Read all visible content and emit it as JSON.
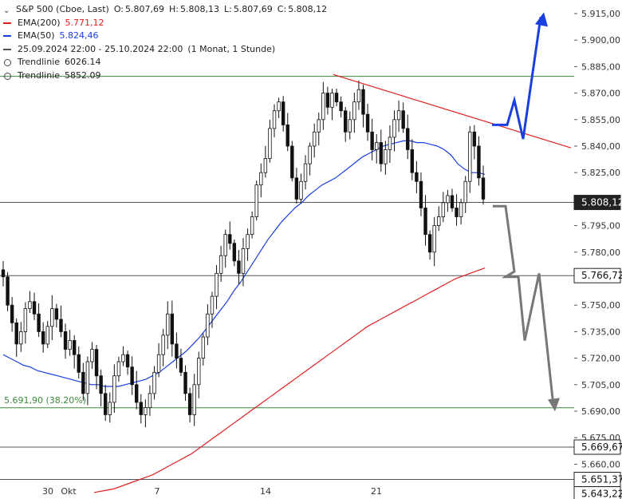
{
  "legend": {
    "instrument": "S&P 500 (Cboe, Last)",
    "ohlc": {
      "o_label": "O:",
      "o": "5.807,69",
      "h_label": "H:",
      "h": "5.808,13",
      "l_label": "L:",
      "l": "5.807,69",
      "c_label": "C:",
      "c": "5.808,12"
    },
    "ema200": {
      "name": "EMA(200)",
      "value": "5.771,12"
    },
    "ema50": {
      "name": "EMA(50)",
      "value": "5.824,46"
    },
    "range": {
      "dates": "25.09.2024 22:00 - 25.10.2024 22:00",
      "interval": "(1 Monat, 1 Stunde)"
    },
    "trend1": {
      "name": "Trendlinie",
      "value": "6026.14"
    },
    "trend2": {
      "name": "Trendlinie",
      "value": "5852.09"
    }
  },
  "colors": {
    "ema200": "#e02020",
    "ema50": "#1a3fe0",
    "price_bg": "#222222",
    "candle": "#111111",
    "hline": "#3a8a3a",
    "resistance": "#e02020",
    "bull_arrow": "#1a3fe0",
    "bear_arrow": "#777777"
  },
  "chart_data": {
    "type": "candlestick",
    "y_axis": {
      "ticks": [
        "5.915,00",
        "5.900,00",
        "5.885,00",
        "5.870,00",
        "5.855,00",
        "5.840,00",
        "5.825,00",
        "5.810,00",
        "5.795,00",
        "5.780,00",
        "5.765,00",
        "5.750,00",
        "5.735,00",
        "5.720,00",
        "5.705,00",
        "5.690,00",
        "5.675,00",
        "5.660,00",
        "5.645,00"
      ],
      "ylim": [
        5642,
        5920
      ]
    },
    "x_axis": {
      "ticks": [
        "30",
        "Okt",
        "7",
        "14",
        "21"
      ]
    },
    "price_labels": [
      {
        "text": "5.808,12",
        "value": 5808.12,
        "style": "dark"
      },
      {
        "text": "5.766,72",
        "value": 5766.72,
        "style": "box"
      },
      {
        "text": "5.669,67",
        "value": 5669.67,
        "style": "box"
      },
      {
        "text": "5.651,37",
        "value": 5651.37,
        "style": "box"
      },
      {
        "text": "5.643,22",
        "value": 5643.22,
        "style": "box"
      }
    ],
    "horizontal_lines": [
      {
        "value": 5879.5,
        "color": "#3a8a3a"
      },
      {
        "value": 5808.12,
        "color": "#555555"
      },
      {
        "value": 5766.72,
        "color": "#555555"
      },
      {
        "value": 5691.9,
        "color": "#3a8a3a",
        "label": "5.691,90 (38.20%)"
      },
      {
        "value": 5669.67,
        "color": "#555555"
      },
      {
        "value": 5651.37,
        "color": "#555555"
      }
    ],
    "fib_label": "5.691,90 (38.20%)",
    "close": [
      5766,
      5750,
      5740,
      5728,
      5735,
      5748,
      5752,
      5745,
      5735,
      5728,
      5738,
      5748,
      5742,
      5735,
      5725,
      5730,
      5722,
      5712,
      5700,
      5718,
      5725,
      5710,
      5700,
      5688,
      5695,
      5710,
      5718,
      5722,
      5715,
      5705,
      5695,
      5688,
      5692,
      5700,
      5712,
      5722,
      5733,
      5745,
      5728,
      5720,
      5712,
      5700,
      5688,
      5705,
      5720,
      5732,
      5745,
      5755,
      5768,
      5778,
      5790,
      5785,
      5775,
      5768,
      5782,
      5790,
      5800,
      5818,
      5825,
      5833,
      5850,
      5860,
      5865,
      5852,
      5840,
      5822,
      5810,
      5820,
      5830,
      5840,
      5848,
      5855,
      5870,
      5862,
      5870,
      5865,
      5860,
      5848,
      5855,
      5865,
      5872,
      5858,
      5848,
      5838,
      5842,
      5830,
      5838,
      5845,
      5855,
      5860,
      5850,
      5838,
      5825,
      5820,
      5805,
      5790,
      5780,
      5795,
      5800,
      5808,
      5812,
      5805,
      5800,
      5808,
      5820,
      5848,
      5840,
      5822,
      5810
    ],
    "ema50": [
      5722,
      5720,
      5718,
      5716,
      5715,
      5713,
      5712,
      5711,
      5710,
      5709,
      5708,
      5707,
      5706,
      5705,
      5705,
      5704,
      5704,
      5704,
      5705,
      5706,
      5707,
      5708,
      5710,
      5712,
      5715,
      5718,
      5721,
      5724,
      5728,
      5732,
      5737,
      5742,
      5747,
      5752,
      5758,
      5763,
      5769,
      5775,
      5781,
      5787,
      5792,
      5797,
      5801,
      5805,
      5808,
      5812,
      5815,
      5818,
      5820,
      5822,
      5825,
      5828,
      5831,
      5834,
      5836,
      5838,
      5840,
      5841,
      5842,
      5843,
      5843,
      5842,
      5842,
      5841,
      5840,
      5838,
      5835,
      5830,
      5827,
      5825,
      5825,
      5824
    ],
    "ema200": [
      5644,
      5645,
      5646,
      5648,
      5650,
      5652,
      5654,
      5657,
      5660,
      5663,
      5666,
      5670,
      5674,
      5678,
      5682,
      5686,
      5690,
      5694,
      5698,
      5702,
      5706,
      5710,
      5714,
      5718,
      5722,
      5726,
      5730,
      5734,
      5738,
      5741,
      5744,
      5747,
      5750,
      5753,
      5756,
      5759,
      5762,
      5765,
      5767,
      5769,
      5771
    ],
    "resistance": {
      "from": 5880.5,
      "to": 5839
    },
    "scenario_up": [
      5852,
      5852,
      5866,
      5844,
      5913
    ],
    "scenario_down": [
      5806,
      5806,
      5769,
      5766,
      5766,
      5730,
      5768,
      5693
    ]
  }
}
